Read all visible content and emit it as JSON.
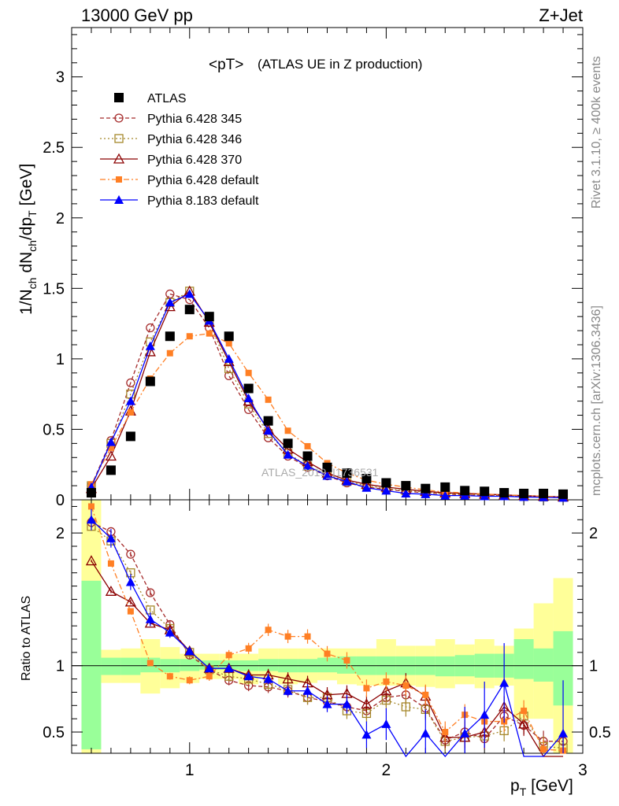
{
  "header": {
    "energy_label": "13000 GeV pp",
    "process_label": "Z+Jet",
    "rivet_label": "Rivet 3.1.10, ≥ 400k events",
    "mcplots_label": "mcplots.cern.ch [arXiv:1306.3436]"
  },
  "chart_data": {
    "type": "scatter",
    "title": "<pT>",
    "subtitle": "(ATLAS UE in Z production)",
    "watermark": "ATLAS_2019_I1736531",
    "xlabel": "p_T [GeV]",
    "xlim": [
      0.4,
      3.0
    ],
    "x_ticks": [
      1,
      2,
      3
    ],
    "top_panel": {
      "ylabel": "1/N_ch dN_ch/dp_T [GeV]",
      "ylim": [
        0,
        3.35
      ],
      "y_ticks": [
        0,
        0.5,
        1,
        1.5,
        2,
        2.5,
        3
      ],
      "y_tick_labels": [
        "0",
        "0.5",
        "1",
        "1.5",
        "2",
        "2.5",
        "3"
      ]
    },
    "ratio_panel": {
      "ylabel": "Ratio to ATLAS",
      "ylim": [
        0.34,
        2.25
      ],
      "y_ticks": [
        0.5,
        1,
        2
      ],
      "y_tick_labels": [
        "0.5",
        "1",
        "2"
      ],
      "band_edges": [
        0.45,
        0.55,
        0.65,
        0.75,
        0.85,
        0.95,
        1.05,
        1.15,
        1.25,
        1.35,
        1.45,
        1.55,
        1.65,
        1.75,
        1.85,
        1.95,
        2.05,
        2.15,
        2.25,
        2.35,
        2.45,
        2.55,
        2.65,
        2.75,
        2.85,
        2.95
      ],
      "inner_band": [
        [
          0.37,
          1.64
        ],
        [
          0.93,
          1.06
        ],
        [
          0.93,
          1.06
        ],
        [
          0.95,
          1.06
        ],
        [
          0.95,
          1.05
        ],
        [
          0.96,
          1.05
        ],
        [
          0.97,
          1.04
        ],
        [
          0.97,
          1.04
        ],
        [
          0.96,
          1.04
        ],
        [
          0.96,
          1.05
        ],
        [
          0.95,
          1.05
        ],
        [
          0.95,
          1.05
        ],
        [
          0.95,
          1.06
        ],
        [
          0.94,
          1.07
        ],
        [
          0.93,
          1.07
        ],
        [
          0.93,
          1.07
        ],
        [
          0.93,
          1.07
        ],
        [
          0.93,
          1.07
        ],
        [
          0.92,
          1.07
        ],
        [
          0.92,
          1.08
        ],
        [
          0.91,
          1.09
        ],
        [
          0.91,
          1.09
        ],
        [
          0.9,
          1.2
        ],
        [
          0.88,
          1.13
        ],
        [
          0.7,
          1.26
        ]
      ],
      "outer_band": [
        [
          0.34,
          2.25
        ],
        [
          0.87,
          1.12
        ],
        [
          0.87,
          1.13
        ],
        [
          0.79,
          1.2
        ],
        [
          0.83,
          1.14
        ],
        [
          0.87,
          1.09
        ],
        [
          0.9,
          1.09
        ],
        [
          0.9,
          1.09
        ],
        [
          0.86,
          1.09
        ],
        [
          0.91,
          1.13
        ],
        [
          0.86,
          1.13
        ],
        [
          0.87,
          1.13
        ],
        [
          0.89,
          1.13
        ],
        [
          0.86,
          1.13
        ],
        [
          0.85,
          1.13
        ],
        [
          0.85,
          1.2
        ],
        [
          0.85,
          1.15
        ],
        [
          0.84,
          1.15
        ],
        [
          0.83,
          1.2
        ],
        [
          0.86,
          1.16
        ],
        [
          0.83,
          1.2
        ],
        [
          0.85,
          1.15
        ],
        [
          0.6,
          1.28
        ],
        [
          0.6,
          1.47
        ],
        [
          0.34,
          1.66
        ]
      ]
    },
    "legend": [
      "ATLAS",
      "Pythia 6.428 345",
      "Pythia 6.428 346",
      "Pythia 6.428 370",
      "Pythia 6.428 default",
      "Pythia 8.183 default"
    ],
    "x": [
      0.5,
      0.6,
      0.7,
      0.8,
      0.9,
      1.0,
      1.1,
      1.2,
      1.3,
      1.4,
      1.5,
      1.6,
      1.7,
      1.8,
      1.9,
      2.0,
      2.1,
      2.2,
      2.3,
      2.4,
      2.5,
      2.6,
      2.7,
      2.8,
      2.9
    ],
    "series": [
      {
        "name": "ATLAS",
        "color": "#000000",
        "style": "data",
        "marker": "filled-square",
        "values": [
          0.05,
          0.21,
          0.45,
          0.84,
          1.16,
          1.35,
          1.3,
          1.16,
          0.79,
          0.56,
          0.4,
          0.31,
          0.23,
          0.19,
          0.15,
          0.12,
          0.1,
          0.08,
          0.09,
          0.065,
          0.06,
          0.05,
          0.045,
          0.045,
          0.04
        ]
      },
      {
        "name": "Pythia 6.428 345",
        "color": "#a52a2a",
        "style": "dashed",
        "marker": "open-circle",
        "values": [
          0.1,
          0.42,
          0.83,
          1.22,
          1.46,
          1.42,
          1.22,
          0.88,
          0.64,
          0.44,
          0.31,
          0.23,
          0.17,
          0.12,
          0.09,
          0.075,
          0.06,
          0.05,
          0.04,
          0.035,
          0.03,
          0.03,
          0.025,
          0.02,
          0.02
        ],
        "ratio": [
          2.08,
          2.01,
          1.84,
          1.55,
          1.31,
          1.08,
          0.97,
          0.89,
          0.85,
          0.84,
          0.81,
          0.76,
          0.73,
          0.69,
          0.66,
          0.76,
          0.78,
          0.68,
          0.44,
          0.5,
          0.45,
          0.62,
          0.55,
          0.43,
          0.43
        ]
      },
      {
        "name": "Pythia 6.428 346",
        "color": "#a5872a",
        "style": "dotted",
        "marker": "open-square",
        "values": [
          0.1,
          0.4,
          0.75,
          1.12,
          1.4,
          1.48,
          1.26,
          0.93,
          0.68,
          0.47,
          0.33,
          0.24,
          0.18,
          0.13,
          0.1,
          0.08,
          0.065,
          0.055,
          0.045,
          0.04,
          0.035,
          0.03,
          0.025,
          0.02,
          0.02
        ],
        "ratio": [
          2.05,
          1.94,
          1.7,
          1.42,
          1.28,
          1.1,
          0.97,
          0.92,
          0.9,
          0.86,
          0.82,
          0.76,
          0.76,
          0.66,
          0.64,
          0.74,
          0.69,
          0.67,
          0.43,
          0.46,
          0.47,
          0.51,
          0.62,
          0.39,
          0.38
        ]
      },
      {
        "name": "Pythia 6.428 370",
        "color": "#8b0000",
        "style": "solid",
        "marker": "open-triangle",
        "values": [
          0.08,
          0.31,
          0.63,
          1.05,
          1.37,
          1.48,
          1.26,
          0.98,
          0.7,
          0.5,
          0.36,
          0.27,
          0.19,
          0.14,
          0.11,
          0.09,
          0.075,
          0.06,
          0.05,
          0.045,
          0.04,
          0.035,
          0.03,
          0.025,
          0.02
        ],
        "ratio": [
          1.79,
          1.56,
          1.48,
          1.32,
          1.27,
          1.11,
          0.98,
          0.98,
          0.93,
          0.93,
          0.9,
          0.87,
          0.78,
          0.79,
          0.71,
          0.81,
          0.87,
          0.77,
          0.46,
          0.46,
          0.5,
          0.69,
          0.56,
          0.31,
          0.3
        ]
      },
      {
        "name": "Pythia 6.428 default",
        "color": "#ff7f24",
        "style": "dashdot",
        "marker": "filled-square",
        "values": [
          0.11,
          0.37,
          0.62,
          0.86,
          1.04,
          1.16,
          1.18,
          1.11,
          0.9,
          0.71,
          0.49,
          0.38,
          0.26,
          0.19,
          0.14,
          0.11,
          0.09,
          0.07,
          0.055,
          0.05,
          0.04,
          0.035,
          0.03,
          0.025,
          0.02
        ],
        "ratio": [
          2.2,
          1.77,
          1.41,
          1.02,
          0.92,
          0.89,
          0.92,
          1.08,
          1.13,
          1.27,
          1.22,
          1.22,
          1.09,
          1.04,
          0.83,
          0.88,
          0.85,
          0.78,
          0.5,
          0.63,
          0.58,
          0.58,
          0.66,
          0.37,
          0.36
        ]
      },
      {
        "name": "Pythia 8.183 default",
        "color": "#0000ff",
        "style": "solid",
        "marker": "filled-triangle",
        "values": [
          0.09,
          0.41,
          0.7,
          1.09,
          1.4,
          1.46,
          1.27,
          1.0,
          0.72,
          0.49,
          0.32,
          0.24,
          0.17,
          0.13,
          0.085,
          0.065,
          0.045,
          0.04,
          0.03,
          0.03,
          0.025,
          0.025,
          0.02,
          0.018,
          0.015
        ],
        "ratio": [
          2.1,
          1.96,
          1.63,
          1.35,
          1.25,
          1.11,
          0.98,
          0.98,
          0.92,
          0.9,
          0.81,
          0.81,
          0.71,
          0.71,
          0.48,
          0.56,
          0.27,
          0.49,
          0.21,
          0.49,
          0.63,
          0.87,
          0.3,
          0.2,
          0.49
        ],
        "ratio_err": [
          0.08,
          0.07,
          0.06,
          0.05,
          0.04,
          0.03,
          0.02,
          0.03,
          0.03,
          0.04,
          0.04,
          0.05,
          0.06,
          0.07,
          0.1,
          0.12,
          0.15,
          0.18,
          0.2,
          0.2,
          0.25,
          0.3,
          0.35,
          0.35,
          0.4
        ]
      }
    ]
  }
}
